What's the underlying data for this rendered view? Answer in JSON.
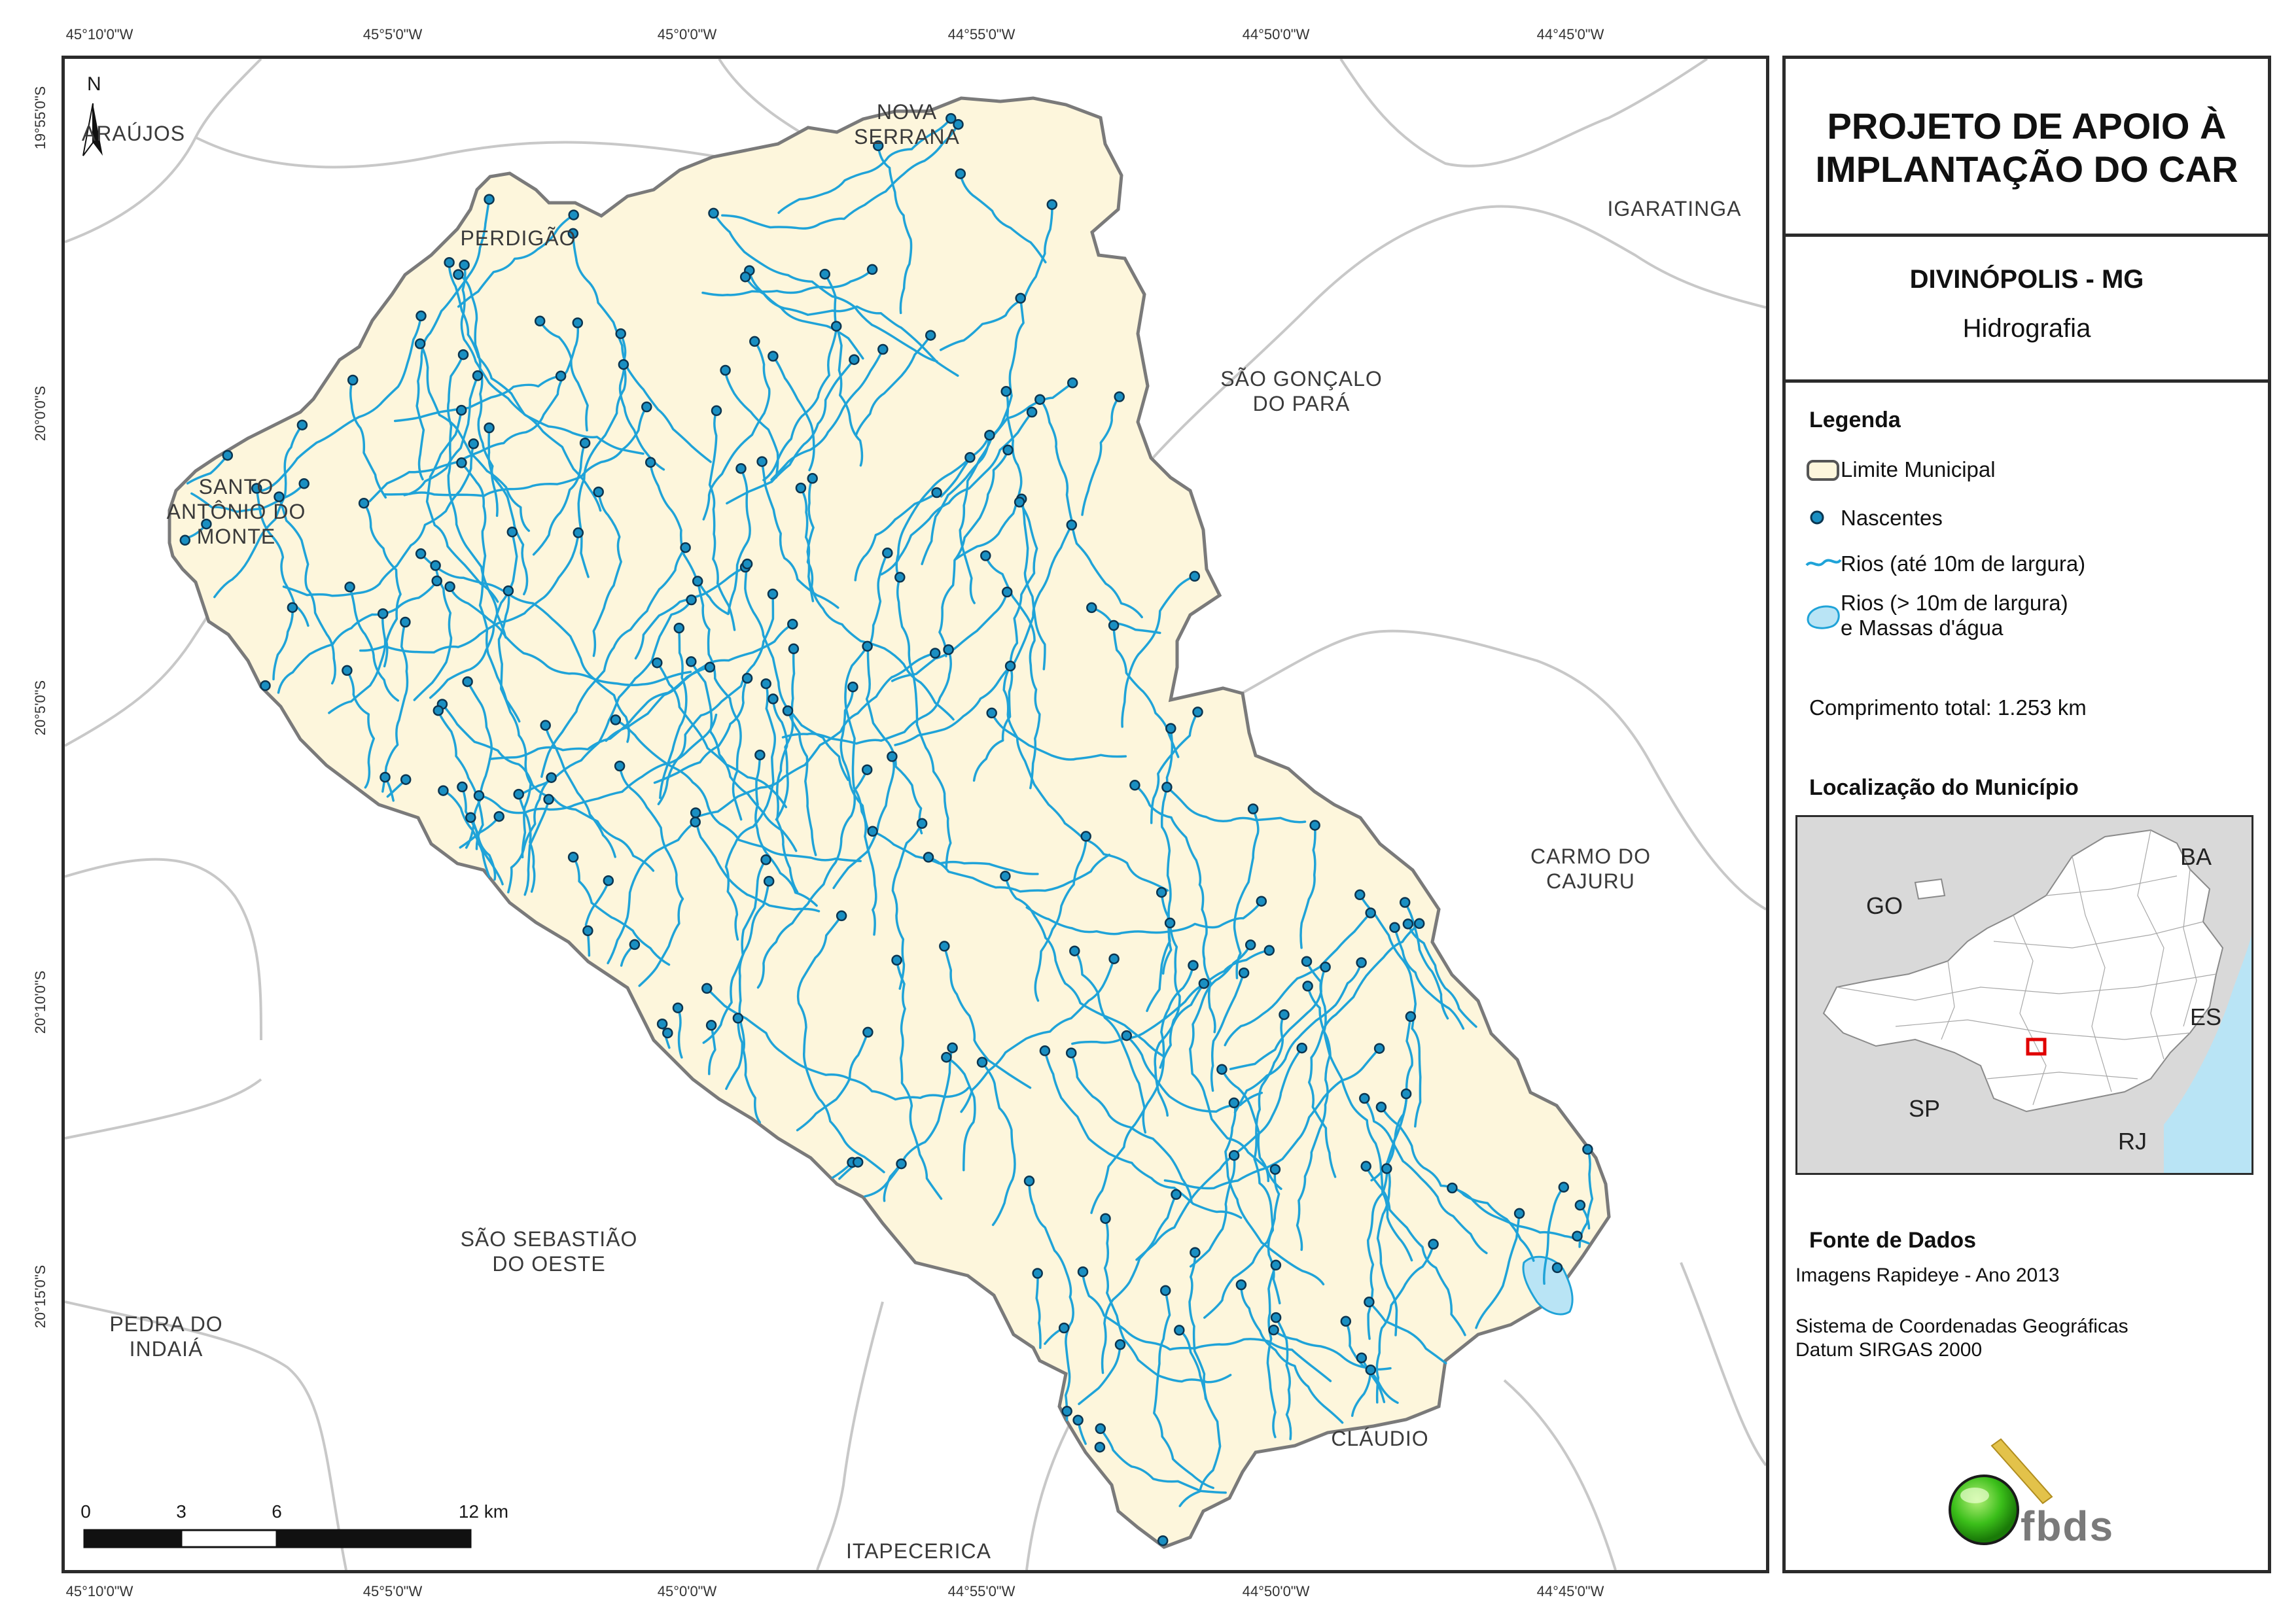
{
  "map": {
    "coords_top": [
      "45°10'0\"W",
      "45°5'0\"W",
      "45°0'0\"W",
      "44°55'0\"W",
      "44°50'0\"W",
      "44°45'0\"W"
    ],
    "coords_bottom": [
      "45°10'0\"W",
      "45°5'0\"W",
      "45°0'0\"W",
      "44°55'0\"W",
      "44°50'0\"W",
      "44°45'0\"W"
    ],
    "coords_left": [
      "19°55'0\"S",
      "20°0'0\"S",
      "20°5'0\"S",
      "20°10'0\"S",
      "20°15'0\"S"
    ],
    "north_label": "N",
    "municipalities": [
      "ARAÚJOS",
      "NOVA\nSERRANA",
      "PERDIGÃO",
      "IGARATINGA",
      "SÃO GONÇALO\nDO PARÁ",
      "SANTO\nANTÔNIO DO\nMONTE",
      "CARMO DO\nCAJURU",
      "SÃO SEBASTIÃO\nDO OESTE",
      "PEDRA DO\nINDAIÁ",
      "CLÁUDIO",
      "ITAPECERICA"
    ],
    "scale": {
      "labels": [
        "0",
        "3",
        "6",
        "12 km"
      ]
    },
    "colors": {
      "municipality_fill": "#fdf6dc",
      "municipality_outline": "#7a7a7a",
      "river": "#1fa3d8",
      "spring_fill": "#1a8fc2",
      "spring_outline": "#0b3550",
      "water_body": "#b9e4f5",
      "neighbor_border": "#c8c8c8"
    }
  },
  "panel": {
    "title": "PROJETO DE APOIO À IMPLANTAÇÃO DO CAR",
    "municipality": "DIVINÓPOLIS - MG",
    "theme": "Hidrografia",
    "legend": {
      "heading": "Legenda",
      "items": [
        {
          "icon": "polygon-outline-icon",
          "label": "Limite Municipal"
        },
        {
          "icon": "spring-point-icon",
          "label": "Nascentes"
        },
        {
          "icon": "river-line-icon",
          "label": "Rios (até 10m de largura)"
        },
        {
          "icon": "water-body-icon",
          "label": "Rios (> 10m de largura)\ne Massas d'água"
        }
      ],
      "total_length": "Comprimento total: 1.253 km"
    },
    "location": {
      "heading": "Localização do Município",
      "states": [
        "BA",
        "GO",
        "ES",
        "SP",
        "RJ"
      ]
    },
    "sources": {
      "heading": "Fonte de Dados",
      "imagery": "Imagens Rapideye - Ano 2013",
      "crs": "Sistema de Coordenadas Geográficas",
      "datum": "Datum SIRGAS 2000"
    },
    "logo_text": "fbds"
  }
}
